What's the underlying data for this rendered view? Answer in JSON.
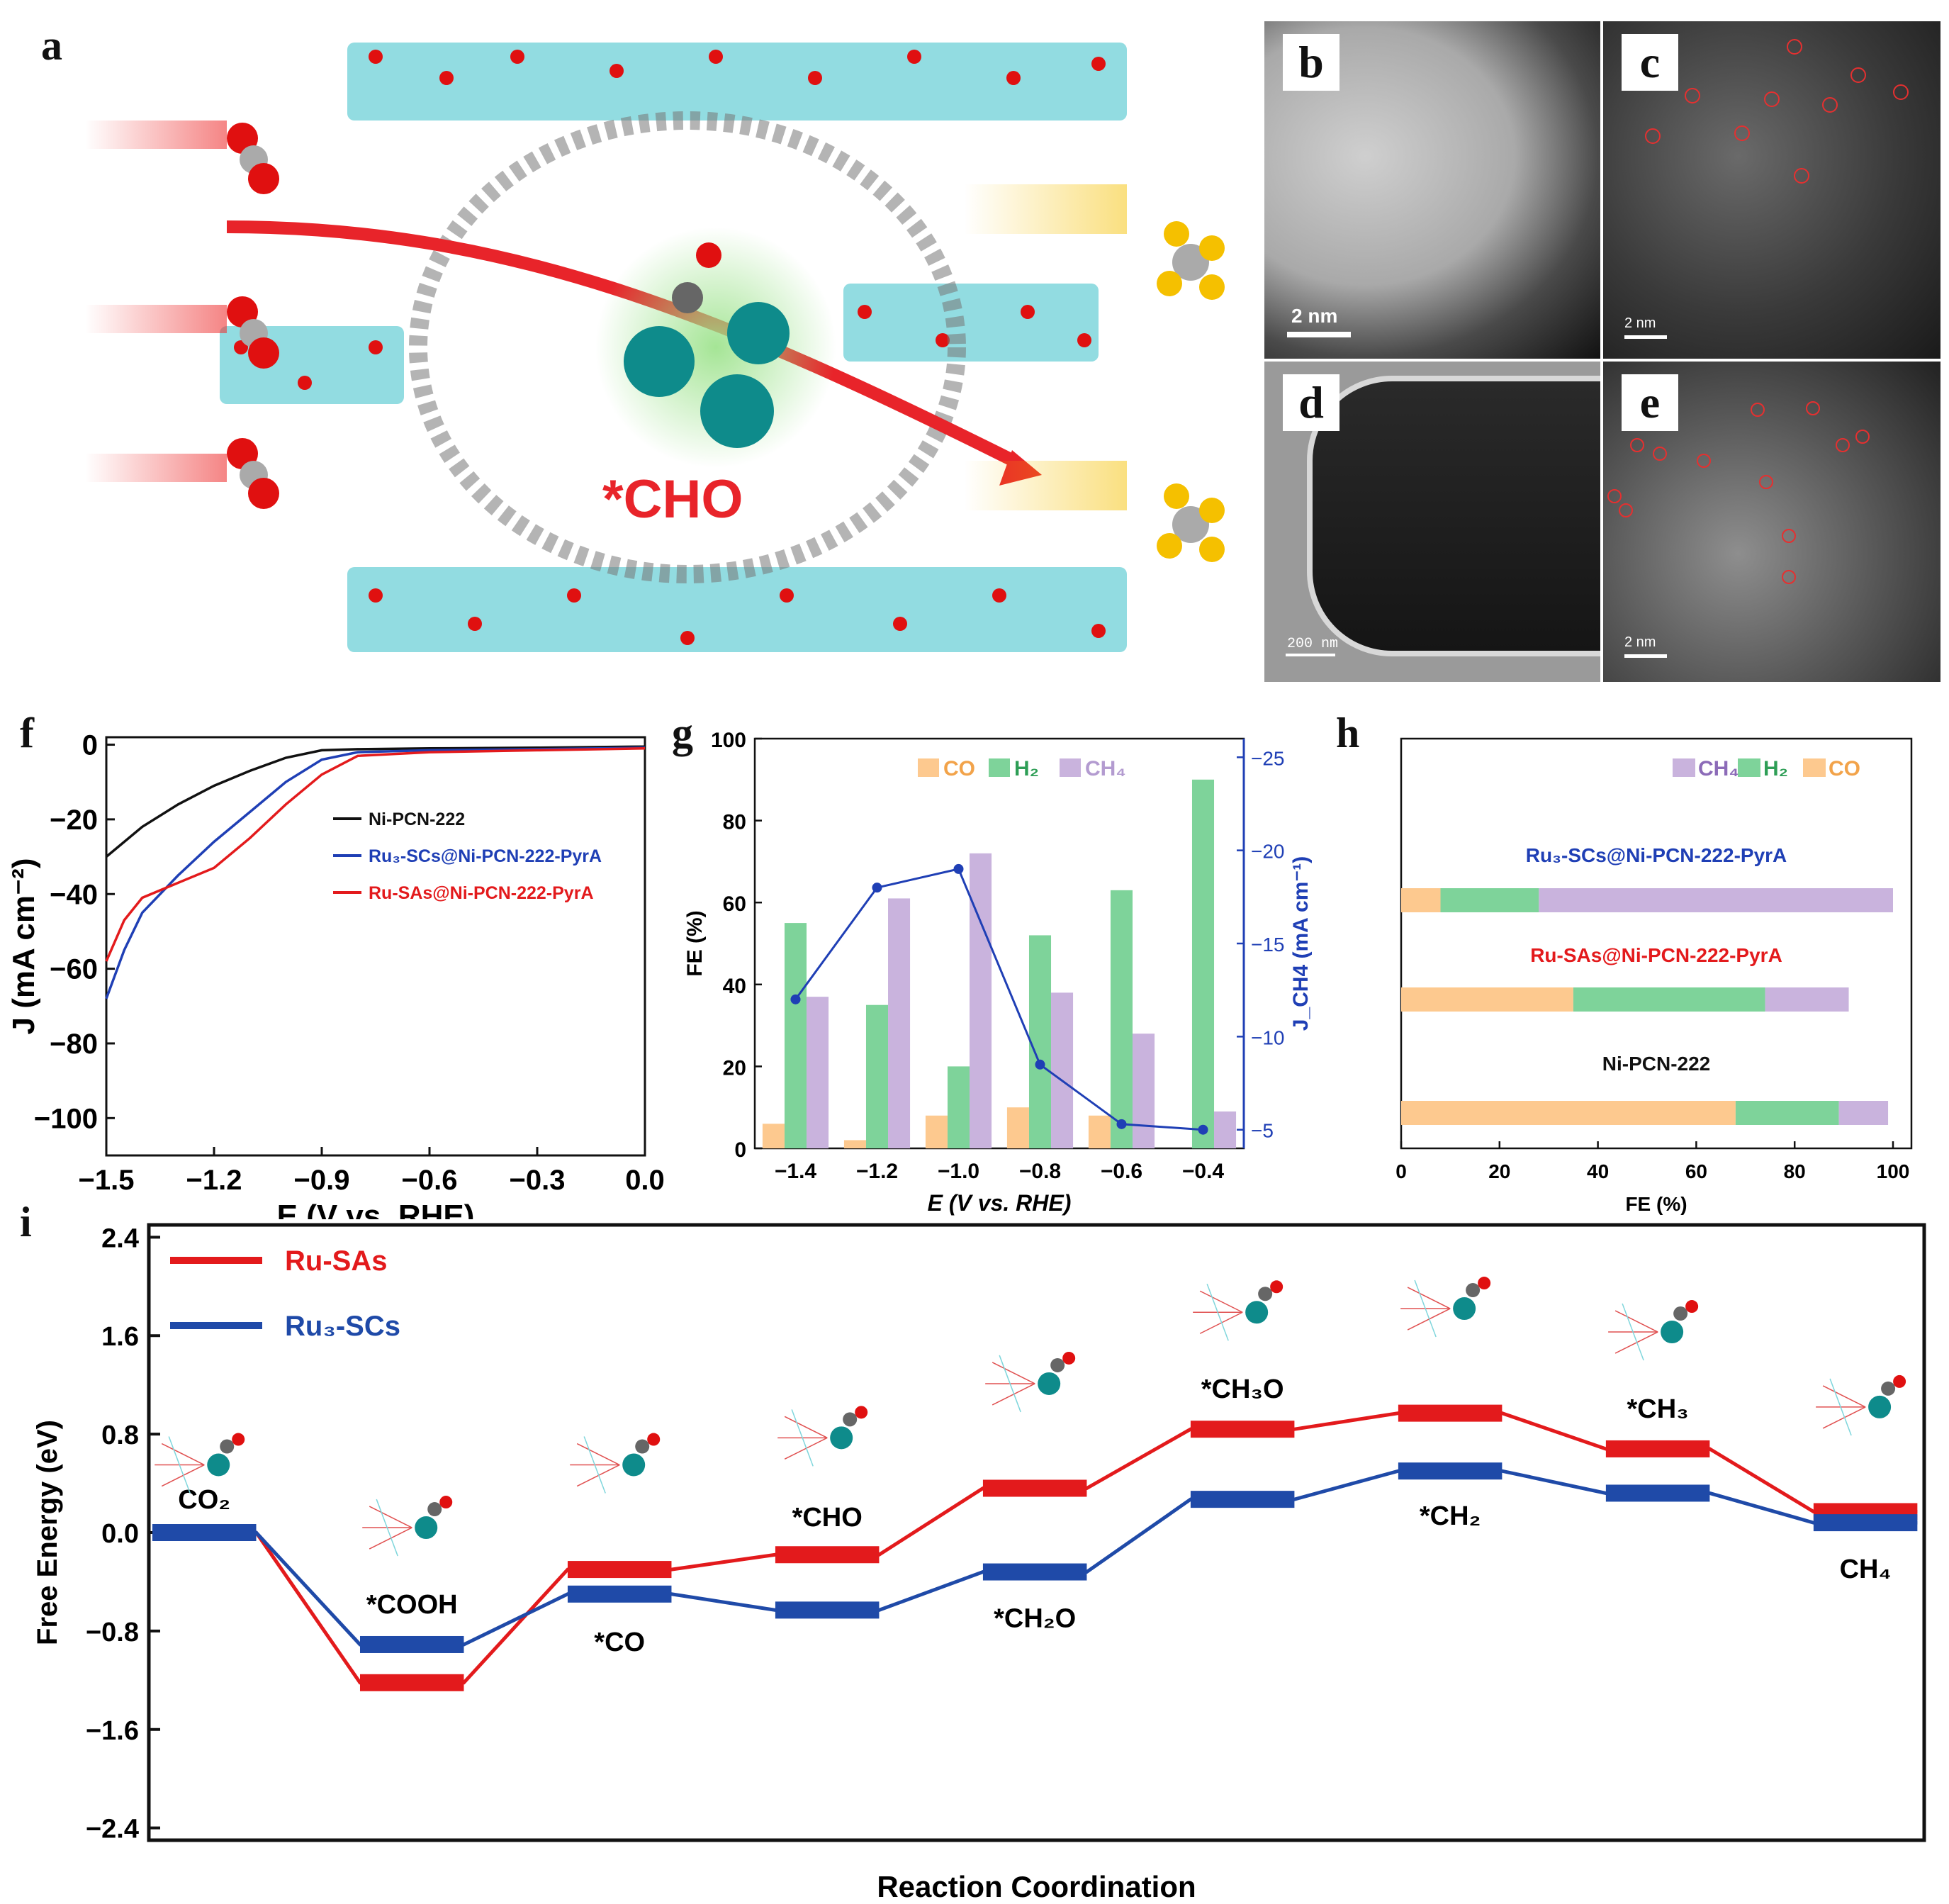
{
  "panels": {
    "a": "a",
    "b": "b",
    "c": "c",
    "d": "d",
    "e": "e",
    "f": "f",
    "g": "g",
    "h": "h",
    "i": "i"
  },
  "panel_a": {
    "label": "*CHO",
    "colors": {
      "ring": "#e8242a",
      "node": "#555",
      "o": "#e01010",
      "frame": "#7fd6dc",
      "ru": "#0e8b8b",
      "ch4": "#f5c000"
    }
  },
  "micrographs": {
    "b": {
      "scale": "2 nm"
    },
    "c": {
      "scale": "2 nm"
    },
    "d": {
      "scale": "200 nm"
    },
    "e": {
      "scale": "2 nm"
    }
  },
  "chart_data": [
    {
      "id": "f",
      "type": "line",
      "xlabel": "E (V vs. RHE)",
      "ylabel": "J (mA cm⁻²)",
      "xlim": [
        -1.5,
        0.0
      ],
      "ylim": [
        -110,
        2
      ],
      "xticks": [
        "−1.5",
        "−1.2",
        "−0.9",
        "−0.6",
        "−0.3",
        "0.0"
      ],
      "yticks": [
        "0",
        "−20",
        "−40",
        "−60",
        "−80",
        "−100"
      ],
      "series": [
        {
          "name": "Ni-PCN-222",
          "color": "#111111",
          "points": [
            [
              -1.5,
              -30
            ],
            [
              -1.4,
              -22
            ],
            [
              -1.3,
              -16
            ],
            [
              -1.2,
              -11
            ],
            [
              -1.1,
              -7
            ],
            [
              -1.0,
              -3.5
            ],
            [
              -0.9,
              -1.5
            ],
            [
              -0.8,
              -1.2
            ],
            [
              -0.6,
              -1
            ],
            [
              -0.3,
              -0.8
            ],
            [
              0,
              -0.5
            ]
          ]
        },
        {
          "name": "Ru3-SCs@Ni-PCN-222-PyrA",
          "color": "#1f3fb5",
          "points": [
            [
              -1.5,
              -68
            ],
            [
              -1.45,
              -55
            ],
            [
              -1.4,
              -45
            ],
            [
              -1.3,
              -35
            ],
            [
              -1.2,
              -26
            ],
            [
              -1.1,
              -18
            ],
            [
              -1.0,
              -10
            ],
            [
              -0.9,
              -4
            ],
            [
              -0.8,
              -2
            ],
            [
              -0.6,
              -1.5
            ],
            [
              -0.3,
              -1.2
            ],
            [
              0,
              -0.8
            ]
          ]
        },
        {
          "name": "Ru-SAs@Ni-PCN-222-PyrA",
          "color": "#e31a1c",
          "points": [
            [
              -1.5,
              -58
            ],
            [
              -1.45,
              -47
            ],
            [
              -1.4,
              -41
            ],
            [
              -1.3,
              -37
            ],
            [
              -1.2,
              -33
            ],
            [
              -1.1,
              -25
            ],
            [
              -1.0,
              -16
            ],
            [
              -0.9,
              -8
            ],
            [
              -0.8,
              -3
            ],
            [
              -0.6,
              -2
            ],
            [
              -0.3,
              -1.5
            ],
            [
              0,
              -1
            ]
          ]
        }
      ],
      "legend_position": "right"
    },
    {
      "id": "g",
      "type": "bar",
      "xlabel": "E (V vs. RHE)",
      "ylabel": "FE (%)",
      "y2label": "J_CH4 (mA cm⁻¹)",
      "categories": [
        "−1.4",
        "−1.2",
        "−1.0",
        "−0.8",
        "−0.6",
        "−0.4"
      ],
      "ylim": [
        0,
        100
      ],
      "y2lim": [
        -4,
        -26
      ],
      "yticks": [
        "0",
        "20",
        "40",
        "60",
        "80",
        "100"
      ],
      "y2ticks": [
        "−5",
        "−10",
        "−15",
        "−20",
        "−25"
      ],
      "series": [
        {
          "name": "CO",
          "color": "#fdc98f",
          "values": [
            6,
            2,
            8,
            10,
            8,
            0
          ]
        },
        {
          "name": "H2",
          "color": "#7ed39a",
          "values": [
            55,
            35,
            20,
            52,
            63,
            90
          ]
        },
        {
          "name": "CH4",
          "color": "#c9b3dd",
          "values": [
            37,
            61,
            72,
            38,
            28,
            9
          ]
        }
      ],
      "line_series": {
        "name": "J_CH4",
        "color": "#1f3fb5",
        "values": [
          -12,
          -18,
          -19,
          -8.5,
          -5.3,
          -5
        ]
      },
      "legend": [
        "CO",
        "H₂",
        "CH₄"
      ],
      "legend_position": "top"
    },
    {
      "id": "h",
      "type": "bar",
      "orientation": "horizontal-stacked",
      "xlabel": "FE (%)",
      "xlim": [
        0,
        100
      ],
      "xticks": [
        "0",
        "20",
        "40",
        "60",
        "80",
        "100"
      ],
      "legend": [
        "CH₄",
        "H₂",
        "CO"
      ],
      "categories": [
        "Ru₃-SCs@Ni-PCN-222-PyrA",
        "Ru-SAs@Ni-PCN-222-PyrA",
        "Ni-PCN-222"
      ],
      "category_colors": [
        "#1f3fb5",
        "#e31a1c",
        "#111111"
      ],
      "series": [
        {
          "name": "CO",
          "color": "#fdc98f",
          "values": [
            8,
            35,
            68
          ]
        },
        {
          "name": "H2",
          "color": "#7ed39a",
          "values": [
            20,
            39,
            21
          ]
        },
        {
          "name": "CH4",
          "color": "#c9b3dd",
          "values": [
            72,
            17,
            10
          ]
        }
      ]
    },
    {
      "id": "i",
      "type": "line",
      "subtype": "energy-diagram",
      "xlabel": "Reaction Coordination",
      "ylabel": "Free  Energy (eV)",
      "ylim": [
        -2.5,
        2.5
      ],
      "yticks": [
        "2.4",
        "1.6",
        "0.8",
        "0.0",
        "−0.8",
        "−1.6",
        "−2.4"
      ],
      "steps": [
        "CO₂",
        "*COOH",
        "*CO",
        "*CHO",
        "*CH₂O",
        "*CH₃O",
        "*CH₂",
        "*CH₃",
        "CH₄"
      ],
      "series": [
        {
          "name": "Ru-SAs",
          "color": "#e31a1c",
          "values": [
            0.0,
            -1.22,
            -0.3,
            -0.18,
            0.36,
            0.84,
            0.97,
            0.68,
            0.17
          ]
        },
        {
          "name": "Ru₃-SCs",
          "color": "#1f4aa8",
          "values": [
            0.0,
            -0.91,
            -0.5,
            -0.63,
            -0.32,
            0.27,
            0.5,
            0.32,
            0.08
          ]
        }
      ]
    }
  ]
}
